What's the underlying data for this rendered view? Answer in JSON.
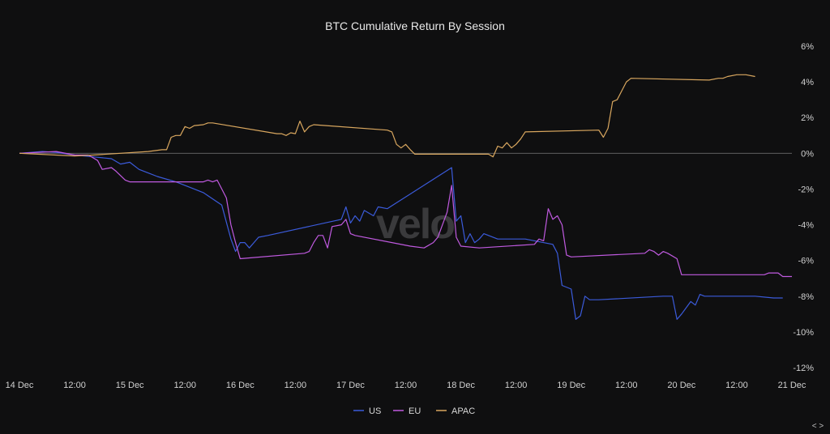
{
  "chart_data": {
    "type": "line",
    "title": "BTC Cumulative Return By Session",
    "watermark": "velo",
    "nav_label": "< >",
    "x_ticks": [
      "14 Dec",
      "12:00",
      "15 Dec",
      "12:00",
      "16 Dec",
      "12:00",
      "17 Dec",
      "12:00",
      "18 Dec",
      "12:00",
      "19 Dec",
      "12:00",
      "20 Dec",
      "12:00",
      "21 Dec"
    ],
    "xlim": [
      0,
      168
    ],
    "y_ticks": [
      "6%",
      "4%",
      "2%",
      "0%",
      "-2%",
      "-4%",
      "-6%",
      "-8%",
      "-10%",
      "-12%"
    ],
    "ylim": [
      -12,
      6
    ],
    "y_tick_values": [
      6,
      4,
      2,
      0,
      -2,
      -4,
      -6,
      -8,
      -10,
      -12
    ],
    "zero_line": true,
    "legend_position": "bottom-center",
    "series": [
      {
        "name": "US",
        "color": "#3b5bdb",
        "points": [
          [
            0,
            0
          ],
          [
            5,
            0.1
          ],
          [
            8,
            0.05
          ],
          [
            12,
            -0.1
          ],
          [
            16,
            -0.2
          ],
          [
            20,
            -0.3
          ],
          [
            22,
            -0.6
          ],
          [
            24,
            -0.5
          ],
          [
            26,
            -0.9
          ],
          [
            28,
            -1.1
          ],
          [
            30,
            -1.3
          ],
          [
            34,
            -1.6
          ],
          [
            38,
            -2.0
          ],
          [
            40,
            -2.2
          ],
          [
            44,
            -2.9
          ],
          [
            46,
            -4.8
          ],
          [
            47,
            -5.5
          ],
          [
            48,
            -5.0
          ],
          [
            49,
            -5.0
          ],
          [
            50,
            -5.3
          ],
          [
            51,
            -5.0
          ],
          [
            52,
            -4.7
          ],
          [
            54,
            -4.6
          ],
          [
            70,
            -3.7
          ],
          [
            71,
            -3.0
          ],
          [
            72,
            -3.9
          ],
          [
            73,
            -3.5
          ],
          [
            74,
            -3.8
          ],
          [
            75,
            -3.2
          ],
          [
            77,
            -3.5
          ],
          [
            78,
            -3.0
          ],
          [
            80,
            -3.1
          ],
          [
            94,
            -0.8
          ],
          [
            95,
            -3.8
          ],
          [
            96,
            -3.5
          ],
          [
            97,
            -5.0
          ],
          [
            98,
            -4.5
          ],
          [
            99,
            -5.0
          ],
          [
            100,
            -4.8
          ],
          [
            101,
            -4.5
          ],
          [
            104,
            -4.8
          ],
          [
            110,
            -4.8
          ],
          [
            116,
            -5.1
          ],
          [
            117,
            -5.6
          ],
          [
            118,
            -7.4
          ],
          [
            120,
            -7.6
          ],
          [
            121,
            -9.3
          ],
          [
            122,
            -9.1
          ],
          [
            123,
            -8.0
          ],
          [
            124,
            -8.2
          ],
          [
            126,
            -8.2
          ],
          [
            140,
            -8.0
          ],
          [
            142,
            -8.0
          ],
          [
            143,
            -9.3
          ],
          [
            144,
            -9.0
          ],
          [
            146,
            -8.3
          ],
          [
            147,
            -8.5
          ],
          [
            148,
            -7.9
          ],
          [
            149,
            -8.0
          ],
          [
            160,
            -8.0
          ],
          [
            164,
            -8.1
          ],
          [
            166,
            -8.1
          ]
        ]
      },
      {
        "name": "EU",
        "color": "#c05ae0",
        "points": [
          [
            0,
            0
          ],
          [
            4,
            0.05
          ],
          [
            8,
            0.1
          ],
          [
            12,
            -0.1
          ],
          [
            15,
            -0.1
          ],
          [
            17,
            -0.4
          ],
          [
            18,
            -0.9
          ],
          [
            20,
            -0.8
          ],
          [
            21,
            -1.0
          ],
          [
            23,
            -1.5
          ],
          [
            24,
            -1.6
          ],
          [
            40,
            -1.6
          ],
          [
            41,
            -1.5
          ],
          [
            42,
            -1.6
          ],
          [
            43,
            -1.5
          ],
          [
            44,
            -2.0
          ],
          [
            45,
            -2.5
          ],
          [
            46,
            -4.0
          ],
          [
            47,
            -5.0
          ],
          [
            48,
            -5.9
          ],
          [
            62,
            -5.6
          ],
          [
            63,
            -5.5
          ],
          [
            64,
            -5.0
          ],
          [
            65,
            -4.6
          ],
          [
            66,
            -4.6
          ],
          [
            67,
            -5.3
          ],
          [
            68,
            -4.1
          ],
          [
            70,
            -4.0
          ],
          [
            71,
            -3.7
          ],
          [
            72,
            -4.5
          ],
          [
            73,
            -4.6
          ],
          [
            85,
            -5.2
          ],
          [
            88,
            -5.3
          ],
          [
            90,
            -5.0
          ],
          [
            91,
            -4.7
          ],
          [
            92,
            -4.0
          ],
          [
            93,
            -3.3
          ],
          [
            94,
            -1.8
          ],
          [
            95,
            -4.7
          ],
          [
            96,
            -5.2
          ],
          [
            100,
            -5.3
          ],
          [
            112,
            -5.1
          ],
          [
            113,
            -4.8
          ],
          [
            114,
            -4.9
          ],
          [
            115,
            -3.1
          ],
          [
            116,
            -3.7
          ],
          [
            117,
            -3.5
          ],
          [
            118,
            -4.0
          ],
          [
            119,
            -5.7
          ],
          [
            120,
            -5.8
          ],
          [
            136,
            -5.6
          ],
          [
            137,
            -5.4
          ],
          [
            138,
            -5.5
          ],
          [
            139,
            -5.7
          ],
          [
            140,
            -5.5
          ],
          [
            141,
            -5.6
          ],
          [
            143,
            -5.9
          ],
          [
            144,
            -6.8
          ],
          [
            160,
            -6.8
          ],
          [
            162,
            -6.8
          ],
          [
            163,
            -6.7
          ],
          [
            165,
            -6.7
          ],
          [
            166,
            -6.9
          ],
          [
            168,
            -6.9
          ]
        ]
      },
      {
        "name": "APAC",
        "color": "#d9a75f",
        "points": [
          [
            0,
            0
          ],
          [
            12,
            -0.15
          ],
          [
            16,
            -0.1
          ],
          [
            28,
            0.1
          ],
          [
            31,
            0.2
          ],
          [
            32,
            0.2
          ],
          [
            33,
            0.9
          ],
          [
            34,
            1.0
          ],
          [
            35,
            1.0
          ],
          [
            36,
            1.5
          ],
          [
            37,
            1.4
          ],
          [
            38,
            1.55
          ],
          [
            40,
            1.6
          ],
          [
            41,
            1.7
          ],
          [
            42,
            1.7
          ],
          [
            56,
            1.1
          ],
          [
            57,
            1.1
          ],
          [
            58,
            1.0
          ],
          [
            59,
            1.15
          ],
          [
            60,
            1.1
          ],
          [
            61,
            1.8
          ],
          [
            62,
            1.2
          ],
          [
            63,
            1.5
          ],
          [
            64,
            1.6
          ],
          [
            80,
            1.3
          ],
          [
            81,
            1.2
          ],
          [
            82,
            0.5
          ],
          [
            83,
            0.3
          ],
          [
            84,
            0.5
          ],
          [
            85,
            0.2
          ],
          [
            86,
            -0.05
          ],
          [
            100,
            -0.05
          ],
          [
            102,
            -0.05
          ],
          [
            103,
            -0.2
          ],
          [
            104,
            0.4
          ],
          [
            105,
            0.3
          ],
          [
            106,
            0.6
          ],
          [
            107,
            0.3
          ],
          [
            108,
            0.5
          ],
          [
            109,
            0.8
          ],
          [
            110,
            1.2
          ],
          [
            126,
            1.3
          ],
          [
            127,
            0.9
          ],
          [
            128,
            1.4
          ],
          [
            129,
            2.9
          ],
          [
            130,
            3.0
          ],
          [
            131,
            3.5
          ],
          [
            132,
            4.0
          ],
          [
            133,
            4.2
          ],
          [
            150,
            4.1
          ],
          [
            152,
            4.2
          ],
          [
            153,
            4.2
          ],
          [
            154,
            4.3
          ],
          [
            156,
            4.4
          ],
          [
            158,
            4.4
          ],
          [
            160,
            4.3
          ]
        ]
      }
    ]
  }
}
